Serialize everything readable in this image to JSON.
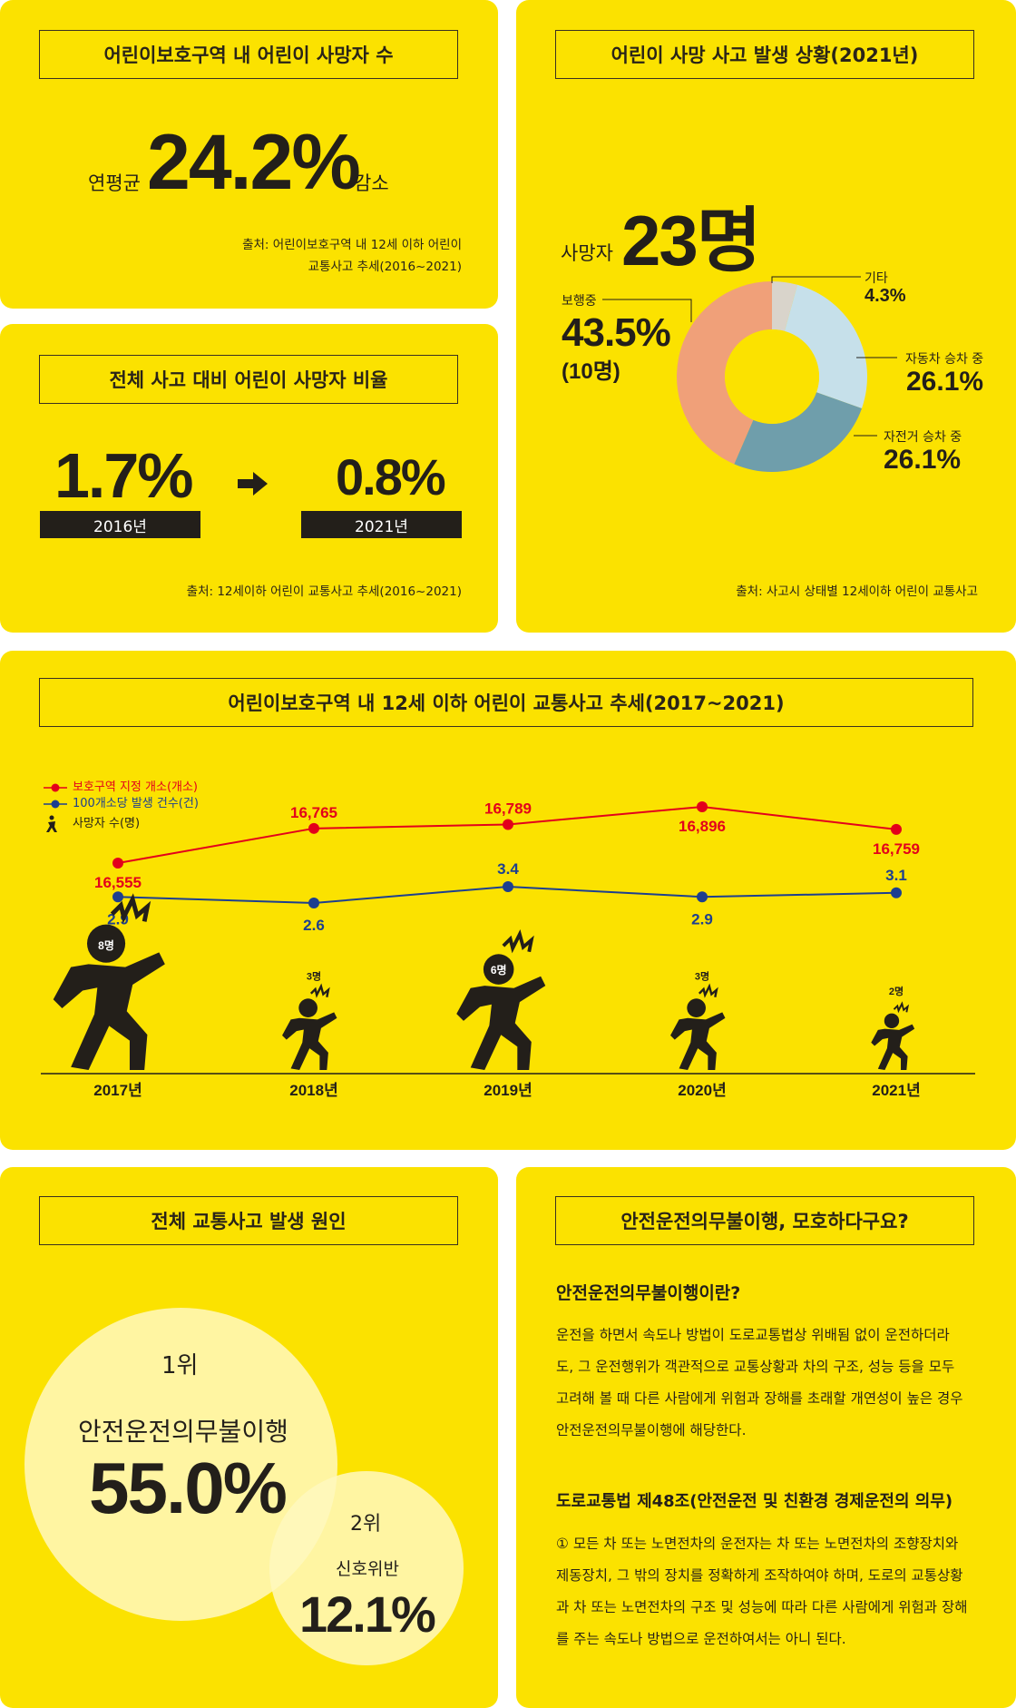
{
  "panel1": {
    "title": "어린이보호구역 내 어린이 사망자 수",
    "prefix": "연평균",
    "value": "24.2%",
    "suffix": "감소",
    "source_line1": "출처: 어린이보호구역 내 12세 이하 어린이",
    "source_line2": "교통사고 추세(2016~2021)"
  },
  "panel2": {
    "title": "전체 사고 대비 어린이 사망자 비율",
    "from_value": "1.7%",
    "from_year": "2016년",
    "to_value": "0.8%",
    "to_year": "2021년",
    "source": "출처: 12세이하 어린이 교통사고 추세(2016~2021)"
  },
  "panel3": {
    "title": "어린이 사망 사고 발생 상황(2021년)",
    "total_label": "사망자",
    "total_value": "23명",
    "source": "출처: 사고시 상태별 12세이하 어린이 교통사고"
  },
  "donut": {
    "type": "pie",
    "slices": [
      {
        "label": "기타",
        "value": "4.3%",
        "pct": 4.3,
        "color": "#d9d4cb"
      },
      {
        "label": "자동차 승차 중",
        "value": "26.1%",
        "pct": 26.1,
        "color": "#c6e0ea"
      },
      {
        "label": "자전거 승차 중",
        "value": "26.1%",
        "pct": 26.1,
        "color": "#6f9eab"
      },
      {
        "label": "보행중",
        "value": "43.5%",
        "sub": "(10명)",
        "pct": 43.5,
        "color": "#f0a079"
      }
    ]
  },
  "panel4": {
    "title": "어린이보호구역 내 12세 이하 어린이 교통사고 추세(2017~2021)",
    "legend": [
      "보호구역 지정 개소(개소)",
      "100개소당 발생 건수(건)",
      "사망자 수(명)"
    ]
  },
  "chart_data": {
    "type": "line",
    "x": [
      "2017년",
      "2018년",
      "2019년",
      "2020년",
      "2021년"
    ],
    "series": [
      {
        "name": "보호구역 지정 개소(개소)",
        "values": [
          16555,
          16765,
          16789,
          16896,
          16759
        ],
        "labels": [
          "16,555",
          "16,765",
          "16,789",
          "16,896",
          "16,759"
        ],
        "color": "#e3001b"
      },
      {
        "name": "100개소당 발생 건수(건)",
        "values": [
          2.9,
          2.6,
          3.4,
          2.9,
          3.1
        ],
        "labels": [
          "2.9",
          "2.6",
          "3.4",
          "2.9",
          "3.1"
        ],
        "color": "#1d3f8f"
      },
      {
        "name": "사망자 수(명)",
        "values": [
          8,
          3,
          6,
          3,
          2
        ],
        "labels": [
          "8명",
          "3명",
          "6명",
          "3명",
          "2명"
        ]
      }
    ]
  },
  "panel5": {
    "title": "전체 교통사고 발생 원인",
    "rank1": "1위",
    "rank1_label": "안전운전의무불이행",
    "rank1_value": "55.0%",
    "rank2": "2위",
    "rank2_label": "신호위반",
    "rank2_value": "12.1%"
  },
  "panel6": {
    "title": "안전운전의무불이행, 모호하다구요?",
    "h1": "안전운전의무불이행이란?",
    "p1": [
      "운전을 하면서 속도나 방법이 도로교통법상 위배됨 없이 운전하더라",
      "도, 그 운전행위가 객관적으로 교통상황과 차의 구조, 성능 등을 모두",
      "고려해 볼 때 다른 사람에게 위험과 장해를 초래할 개연성이 높은 경우",
      "안전운전의무불이행에 해당한다."
    ],
    "h2": "도로교통법 제48조(안전운전 및 친환경 경제운전의 의무)",
    "p2": [
      "① 모든 차 또는 노면전차의 운전자는 차 또는 노면전차의 조향장치와",
      "제동장치, 그 밖의 장치를 정확하게 조작하여야 하며, 도로의 교통상황",
      "과 차 또는 노면전차의 구조 및 성능에 따라 다른 사람에게 위험과 장해",
      "를 주는 속도나 방법으로 운전하여서는 아니 된다."
    ]
  }
}
